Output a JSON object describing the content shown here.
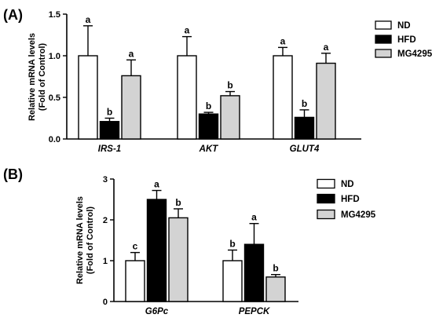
{
  "chart_data": [
    {
      "type": "bar",
      "panel_label": "(A)",
      "ylabel": [
        "Relative mRNA levels",
        "(Fold of Control)"
      ],
      "ylim": [
        0,
        1.5
      ],
      "yticks": [
        0.0,
        0.5,
        1.0,
        1.5
      ],
      "ytick_labels": [
        "0.0",
        "0.5",
        "1.0",
        "1.5"
      ],
      "categories": [
        "IRS-1",
        "AKT",
        "GLUT4"
      ],
      "legend_position": "top-right",
      "series": [
        {
          "name": "ND",
          "color": "#ffffff",
          "values": [
            1.0,
            1.0,
            1.0
          ],
          "errors": [
            0.36,
            0.23,
            0.1
          ],
          "letters": [
            "a",
            "a",
            "a"
          ]
        },
        {
          "name": "HFD",
          "color": "#000000",
          "values": [
            0.21,
            0.3,
            0.26
          ],
          "errors": [
            0.04,
            0.02,
            0.09
          ],
          "letters": [
            "b",
            "b",
            "b"
          ]
        },
        {
          "name": "MG4295",
          "color": "#d3d3d3",
          "values": [
            0.76,
            0.52,
            0.91
          ],
          "errors": [
            0.19,
            0.05,
            0.12
          ],
          "letters": [
            "a",
            "b",
            "a"
          ]
        }
      ]
    },
    {
      "type": "bar",
      "panel_label": "(B)",
      "ylabel": [
        "Relative mRNA levels",
        "(Fold of Control)"
      ],
      "ylim": [
        0,
        3
      ],
      "yticks": [
        0,
        1,
        2,
        3
      ],
      "ytick_labels": [
        "0",
        "1",
        "2",
        "3"
      ],
      "categories": [
        "G6Pc",
        "PEPCK"
      ],
      "legend_position": "top-right",
      "series": [
        {
          "name": "ND",
          "color": "#ffffff",
          "values": [
            1.0,
            1.0
          ],
          "errors": [
            0.2,
            0.26
          ],
          "letters": [
            "c",
            "b"
          ]
        },
        {
          "name": "HFD",
          "color": "#000000",
          "values": [
            2.5,
            1.4
          ],
          "errors": [
            0.22,
            0.51
          ],
          "letters": [
            "a",
            "a"
          ]
        },
        {
          "name": "MG4295",
          "color": "#d3d3d3",
          "values": [
            2.05,
            0.6
          ],
          "errors": [
            0.22,
            0.06
          ],
          "letters": [
            "b",
            "b"
          ]
        }
      ]
    }
  ]
}
